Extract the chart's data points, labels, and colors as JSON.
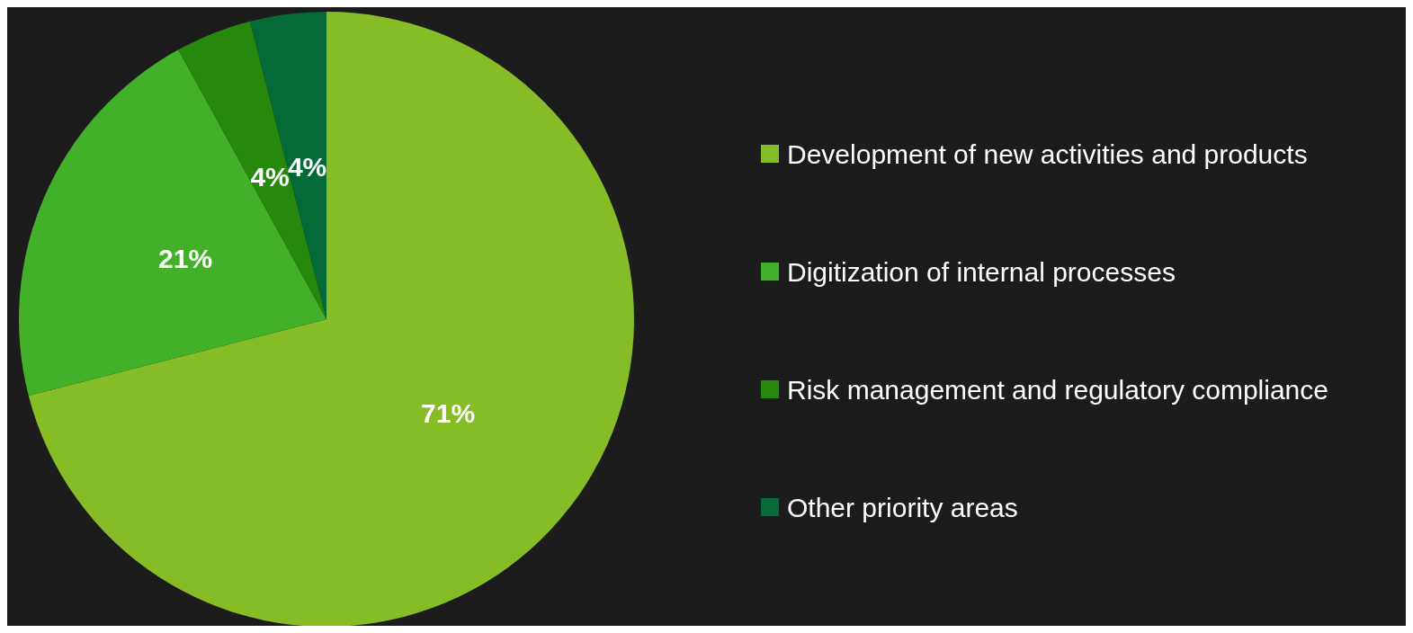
{
  "chart_data": {
    "type": "pie",
    "categories": [
      "Development of new activities and products",
      "Digitization of internal processes",
      "Risk management and regulatory compliance",
      "Other priority areas"
    ],
    "values": [
      71,
      21,
      4,
      4
    ],
    "colors": [
      "#86bc25",
      "#43b02a",
      "#26890d",
      "#046a38"
    ],
    "value_labels": [
      "71%",
      "21%",
      "4%",
      "4%"
    ],
    "legend": "right"
  }
}
